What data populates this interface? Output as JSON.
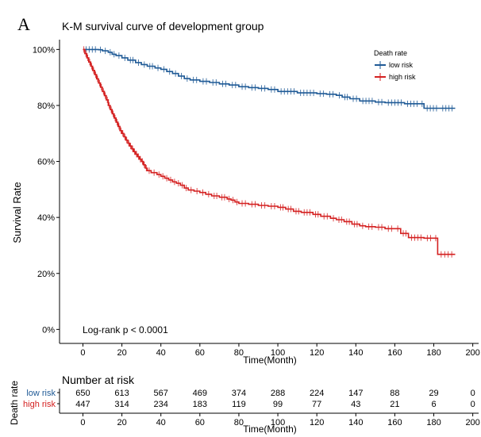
{
  "panel_label": "A",
  "chart_data": [
    {
      "type": "line",
      "subtype": "kaplan-meier",
      "title": "K-M survival curve of development group",
      "xlabel": "Time(Month)",
      "ylabel": "Survival Rate",
      "xlim": [
        -12,
        203
      ],
      "ylim": [
        -0.05,
        1.035
      ],
      "x_ticks": [
        0,
        20,
        40,
        60,
        80,
        100,
        120,
        140,
        160,
        180,
        200
      ],
      "y_ticks": [
        0,
        0.2,
        0.4,
        0.6,
        0.8,
        1.0
      ],
      "y_tick_labels": [
        "0%",
        "20%",
        "40%",
        "60%",
        "80%",
        "100%"
      ],
      "grid": false,
      "legend": {
        "title": "Death rate",
        "placement": "top-right"
      },
      "annotation": "Log-rank  p < 0.0001",
      "series": [
        {
          "name": "low risk",
          "color": "#1f5a96",
          "points": [
            [
              0,
              1.0
            ],
            [
              8,
              0.999
            ],
            [
              10,
              0.995
            ],
            [
              13,
              0.99
            ],
            [
              15,
              0.983
            ],
            [
              17,
              0.978
            ],
            [
              20,
              0.97
            ],
            [
              23,
              0.962
            ],
            [
              27,
              0.953
            ],
            [
              30,
              0.946
            ],
            [
              33,
              0.94
            ],
            [
              37,
              0.934
            ],
            [
              40,
              0.929
            ],
            [
              43,
              0.921
            ],
            [
              46,
              0.914
            ],
            [
              49,
              0.905
            ],
            [
              52,
              0.896
            ],
            [
              55,
              0.891
            ],
            [
              60,
              0.886
            ],
            [
              65,
              0.882
            ],
            [
              70,
              0.877
            ],
            [
              75,
              0.873
            ],
            [
              80,
              0.867
            ],
            [
              85,
              0.864
            ],
            [
              90,
              0.861
            ],
            [
              95,
              0.857
            ],
            [
              100,
              0.85
            ],
            [
              110,
              0.845
            ],
            [
              120,
              0.842
            ],
            [
              125,
              0.84
            ],
            [
              130,
              0.836
            ],
            [
              133,
              0.83
            ],
            [
              137,
              0.824
            ],
            [
              142,
              0.816
            ],
            [
              150,
              0.812
            ],
            [
              155,
              0.81
            ],
            [
              165,
              0.806
            ],
            [
              173,
              0.806
            ],
            [
              175,
              0.79
            ],
            [
              183,
              0.79
            ],
            [
              191,
              0.79
            ]
          ]
        },
        {
          "name": "high risk",
          "color": "#d42020",
          "points": [
            [
              0,
              1.0
            ],
            [
              1,
              0.985
            ],
            [
              2,
              0.97
            ],
            [
              3,
              0.955
            ],
            [
              4,
              0.94
            ],
            [
              5,
              0.925
            ],
            [
              6,
              0.91
            ],
            [
              7,
              0.895
            ],
            [
              8,
              0.88
            ],
            [
              9,
              0.865
            ],
            [
              10,
              0.85
            ],
            [
              11,
              0.835
            ],
            [
              12,
              0.82
            ],
            [
              13,
              0.8
            ],
            [
              14,
              0.785
            ],
            [
              15,
              0.77
            ],
            [
              16,
              0.755
            ],
            [
              17,
              0.74
            ],
            [
              18,
              0.725
            ],
            [
              19,
              0.71
            ],
            [
              20,
              0.7
            ],
            [
              21,
              0.688
            ],
            [
              22,
              0.676
            ],
            [
              23,
              0.665
            ],
            [
              24,
              0.655
            ],
            [
              25,
              0.645
            ],
            [
              26,
              0.635
            ],
            [
              27,
              0.626
            ],
            [
              28,
              0.617
            ],
            [
              29,
              0.608
            ],
            [
              30,
              0.6
            ],
            [
              31,
              0.588
            ],
            [
              32,
              0.576
            ],
            [
              33,
              0.567
            ],
            [
              35,
              0.56
            ],
            [
              38,
              0.553
            ],
            [
              40,
              0.547
            ],
            [
              42,
              0.54
            ],
            [
              44,
              0.534
            ],
            [
              46,
              0.527
            ],
            [
              48,
              0.522
            ],
            [
              50,
              0.515
            ],
            [
              52,
              0.505
            ],
            [
              54,
              0.498
            ],
            [
              57,
              0.494
            ],
            [
              60,
              0.489
            ],
            [
              63,
              0.483
            ],
            [
              66,
              0.477
            ],
            [
              70,
              0.472
            ],
            [
              74,
              0.466
            ],
            [
              76,
              0.462
            ],
            [
              78,
              0.455
            ],
            [
              80,
              0.45
            ],
            [
              85,
              0.447
            ],
            [
              90,
              0.443
            ],
            [
              95,
              0.44
            ],
            [
              100,
              0.436
            ],
            [
              104,
              0.43
            ],
            [
              108,
              0.422
            ],
            [
              112,
              0.418
            ],
            [
              118,
              0.411
            ],
            [
              122,
              0.404
            ],
            [
              127,
              0.397
            ],
            [
              130,
              0.392
            ],
            [
              134,
              0.385
            ],
            [
              138,
              0.376
            ],
            [
              142,
              0.37
            ],
            [
              145,
              0.367
            ],
            [
              150,
              0.365
            ],
            [
              155,
              0.36
            ],
            [
              160,
              0.36
            ],
            [
              163,
              0.343
            ],
            [
              167,
              0.328
            ],
            [
              175,
              0.326
            ],
            [
              180,
              0.326
            ],
            [
              182,
              0.268
            ],
            [
              191,
              0.268
            ]
          ]
        }
      ]
    },
    {
      "type": "table",
      "title": "Number at risk",
      "ylabel": "Death rate",
      "xlabel": "Time(Month)",
      "x": [
        0,
        20,
        40,
        60,
        80,
        100,
        120,
        140,
        160,
        180,
        200
      ],
      "rows": [
        {
          "name": "low risk",
          "color": "#1f5a96",
          "values": [
            "650",
            "613",
            "567",
            "469",
            "374",
            "288",
            "224",
            "147",
            "88",
            "29",
            "0"
          ]
        },
        {
          "name": "high risk",
          "color": "#d42020",
          "values": [
            "447",
            "314",
            "234",
            "183",
            "119",
            "99",
            "77",
            "43",
            "21",
            "6",
            "0"
          ]
        }
      ]
    }
  ]
}
